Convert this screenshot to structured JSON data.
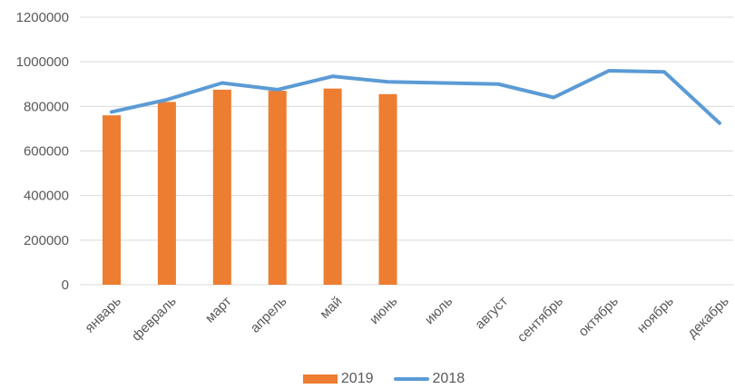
{
  "chart_data": {
    "type": "bar",
    "subtype": "combo-bar-line",
    "title": "",
    "xlabel": "",
    "ylabel": "",
    "categories": [
      "январь",
      "февраль",
      "март",
      "апрель",
      "май",
      "июнь",
      "июль",
      "август",
      "сентябрь",
      "октябрь",
      "ноябрь",
      "декабрь"
    ],
    "series": [
      {
        "name": "2019",
        "type": "bar",
        "color": "#ED7D31",
        "values": [
          760000,
          820000,
          875000,
          870000,
          880000,
          855000,
          null,
          null,
          null,
          null,
          null,
          null
        ]
      },
      {
        "name": "2018",
        "type": "line",
        "color": "#5B9BD5",
        "values": [
          775000,
          830000,
          905000,
          875000,
          935000,
          910000,
          905000,
          900000,
          840000,
          960000,
          955000,
          725000
        ]
      }
    ],
    "ylim": [
      0,
      1200000
    ],
    "ytick_step": 200000,
    "ytick_labels": [
      "0",
      "200000",
      "400000",
      "600000",
      "800000",
      "1000000",
      "1200000"
    ],
    "grid": true,
    "legend_position": "bottom"
  },
  "colors": {
    "background": "#FFFFFF",
    "grid": "#D9D9D9",
    "axis_line": "#D9D9D9",
    "axis_text": "#595959",
    "bar_2019": "#ED7D31",
    "line_2018": "#5B9BD5"
  },
  "legend": {
    "items": [
      {
        "label": "2019",
        "swatch": "bar-swatch"
      },
      {
        "label": "2018",
        "swatch": "line-swatch"
      }
    ]
  }
}
